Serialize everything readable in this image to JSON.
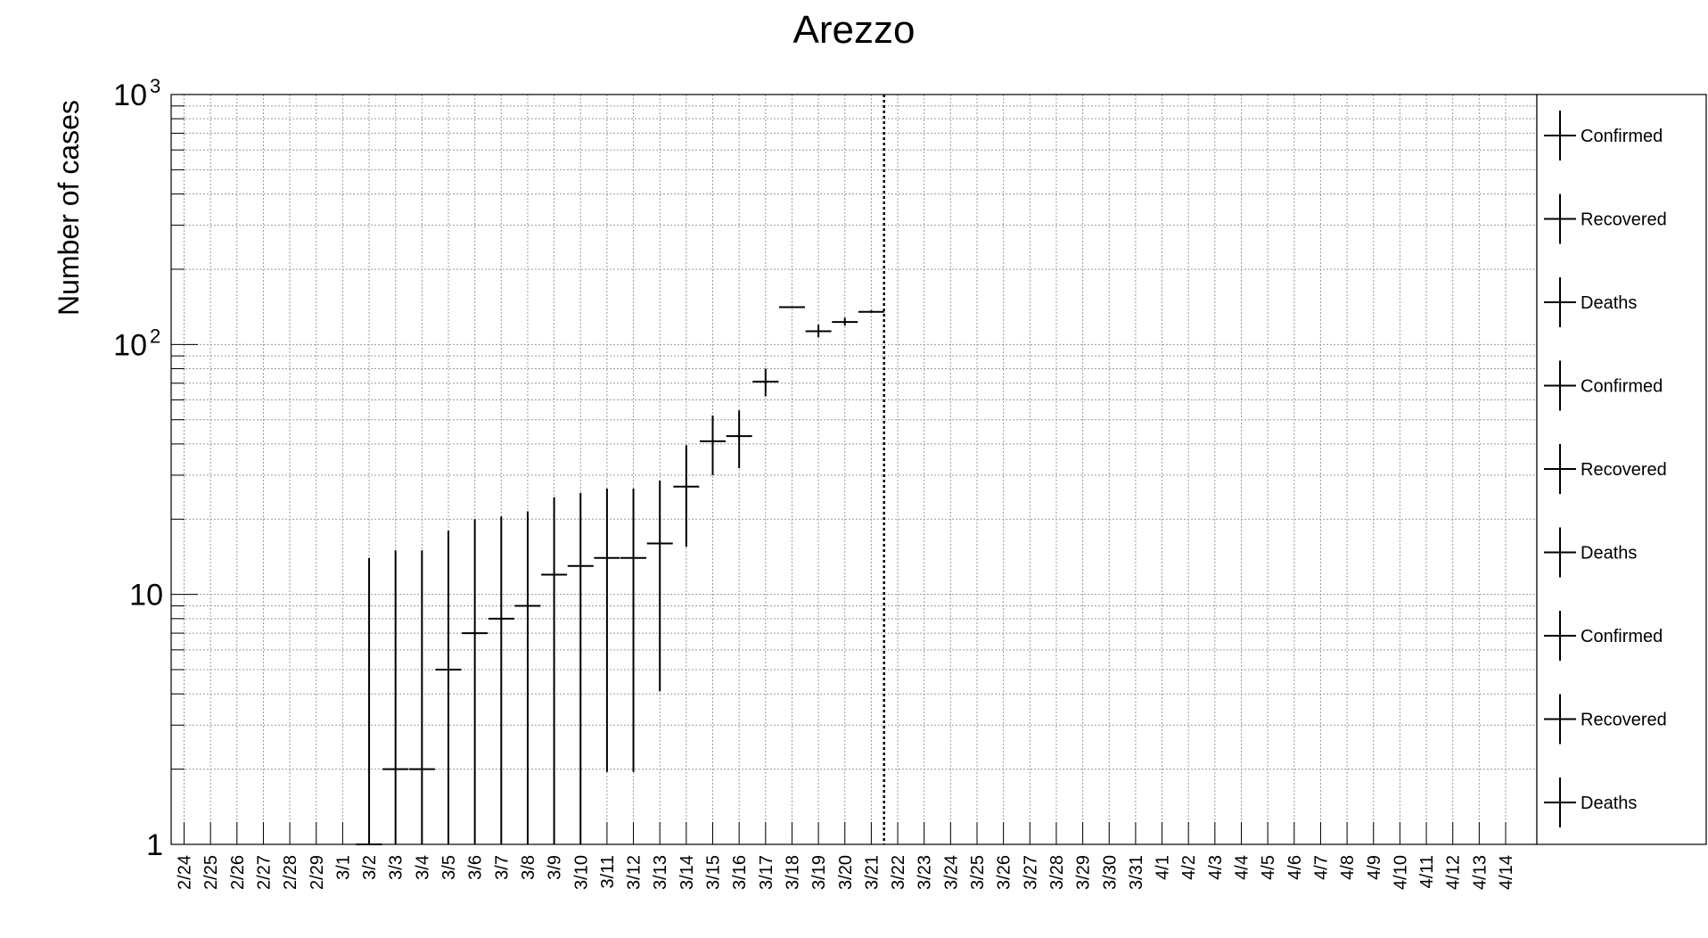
{
  "chart_data": {
    "type": "scatter",
    "title": "Arezzo",
    "ylabel": "Number of cases",
    "xlabel": "",
    "yscale": "log",
    "ylim": [
      1,
      1000
    ],
    "grid": true,
    "legend_position": "right",
    "categories": [
      "2/24",
      "2/25",
      "2/26",
      "2/27",
      "2/28",
      "2/29",
      "3/1",
      "3/2",
      "3/3",
      "3/4",
      "3/5",
      "3/6",
      "3/7",
      "3/8",
      "3/9",
      "3/10",
      "3/11",
      "3/12",
      "3/13",
      "3/14",
      "3/15",
      "3/16",
      "3/17",
      "3/18",
      "3/19",
      "3/20",
      "3/21",
      "3/22",
      "3/23",
      "3/24",
      "3/25",
      "3/26",
      "3/27",
      "3/28",
      "3/29",
      "3/30",
      "3/31",
      "4/1",
      "4/2",
      "4/3",
      "4/4",
      "4/5",
      "4/6",
      "4/7",
      "4/8",
      "4/9",
      "4/10",
      "4/11",
      "4/12",
      "4/13",
      "4/14"
    ],
    "y_ticks": [
      {
        "value": 1,
        "label": "1"
      },
      {
        "value": 10,
        "label": "10"
      },
      {
        "value": 100,
        "label": "10",
        "exp": "2"
      },
      {
        "value": 1000,
        "label": "10",
        "exp": "3"
      }
    ],
    "reference_line": {
      "category": "3/22",
      "style": "dotted"
    },
    "series": [
      {
        "name": "Confirmed",
        "points": [
          {
            "category": "3/2",
            "value": 1,
            "err_low": 1,
            "err_high": 14
          },
          {
            "category": "3/3",
            "value": 2,
            "err_low": 1,
            "err_high": 15
          },
          {
            "category": "3/4",
            "value": 2,
            "err_low": 1,
            "err_high": 15
          },
          {
            "category": "3/5",
            "value": 5,
            "err_low": 1,
            "err_high": 18
          },
          {
            "category": "3/6",
            "value": 7,
            "err_low": 1,
            "err_high": 20
          },
          {
            "category": "3/7",
            "value": 8,
            "err_low": 1,
            "err_high": 20.5
          },
          {
            "category": "3/8",
            "value": 9,
            "err_low": 1,
            "err_high": 21.5
          },
          {
            "category": "3/9",
            "value": 12,
            "err_low": 1,
            "err_high": 24.5
          },
          {
            "category": "3/10",
            "value": 13,
            "err_low": 1,
            "err_high": 25.5
          },
          {
            "category": "3/11",
            "value": 14,
            "err_low": 1.95,
            "err_high": 26.5
          },
          {
            "category": "3/12",
            "value": 14,
            "err_low": 1.95,
            "err_high": 26.5
          },
          {
            "category": "3/13",
            "value": 16,
            "err_low": 4.1,
            "err_high": 28.5
          },
          {
            "category": "3/14",
            "value": 27,
            "err_low": 15.5,
            "err_high": 39.5
          },
          {
            "category": "3/15",
            "value": 41,
            "err_low": 30,
            "err_high": 52
          },
          {
            "category": "3/16",
            "value": 43,
            "err_low": 32,
            "err_high": 54.5
          },
          {
            "category": "3/17",
            "value": 71,
            "err_low": 62,
            "err_high": 80
          },
          {
            "category": "3/18",
            "value": 141,
            "err_low": 141,
            "err_high": 141
          },
          {
            "category": "3/19",
            "value": 113,
            "err_low": 107,
            "err_high": 120
          },
          {
            "category": "3/20",
            "value": 123,
            "err_low": 119,
            "err_high": 128
          },
          {
            "category": "3/21",
            "value": 135,
            "err_low": 134,
            "err_high": 137
          }
        ]
      },
      {
        "name": "Recovered",
        "points": []
      },
      {
        "name": "Deaths",
        "points": []
      }
    ],
    "legend": [
      "Confirmed",
      "Recovered",
      "Deaths",
      "Confirmed",
      "Recovered",
      "Deaths",
      "Confirmed",
      "Recovered",
      "Deaths"
    ]
  }
}
